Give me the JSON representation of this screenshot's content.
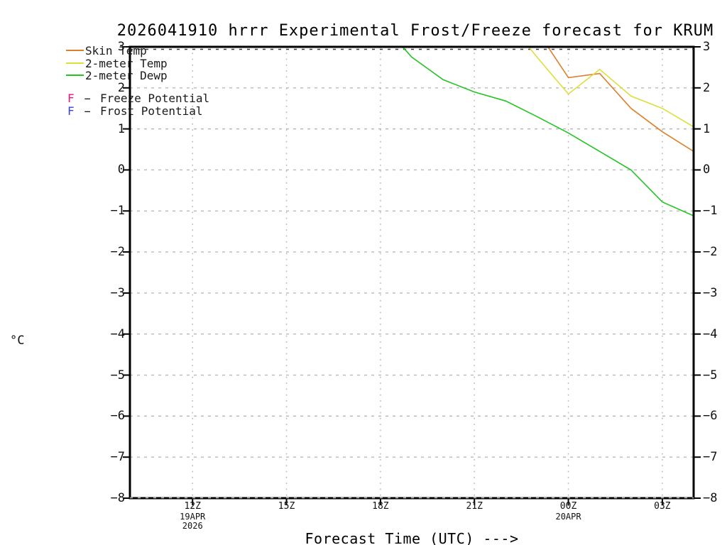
{
  "title": "2026041910 hrrr Experimental Frost/Freeze forecast for KRUM",
  "y_axis_unit": "°C",
  "legend": {
    "series": [
      {
        "label": "Skin Temp",
        "color": "#DD7F2B"
      },
      {
        "label": "2-meter Temp",
        "color": "#DEDE3C"
      },
      {
        "label": "2-meter Dewp",
        "color": "#24C424"
      }
    ],
    "flags": [
      {
        "letter": "F",
        "separator": "-",
        "label": "Freeze Potential",
        "color": "#F01274"
      },
      {
        "letter": "F",
        "separator": "-",
        "label": "Frost Potential",
        "color": "#3442DE"
      }
    ]
  },
  "chart_data": {
    "type": "line",
    "title": "2026041910 hrrr Experimental Frost/Freeze forecast for KRUM",
    "xlabel": "Forecast Time (UTC) --->",
    "ylabel": "°C",
    "x_range_hours": [
      10,
      28
    ],
    "ylim": [
      -8,
      3
    ],
    "y_ticks": [
      3,
      2,
      1,
      0,
      -1,
      -2,
      -3,
      -4,
      -5,
      -6,
      -7,
      -8
    ],
    "x_ticks": [
      {
        "hour": 12,
        "label": "12Z",
        "sub": "19APR",
        "sub2": "2026"
      },
      {
        "hour": 15,
        "label": "15Z"
      },
      {
        "hour": 18,
        "label": "18Z"
      },
      {
        "hour": 21,
        "label": "21Z"
      },
      {
        "hour": 24,
        "label": "00Z",
        "sub": "20APR"
      },
      {
        "hour": 27,
        "label": "03Z"
      }
    ],
    "grid": {
      "horizontal_style": "dashed",
      "vertical_style": "dotted",
      "color": "#b9b9b9"
    },
    "series": [
      {
        "name": "Skin Temp",
        "color": "#DD7F2B",
        "points": [
          [
            23,
            3.4
          ],
          [
            24,
            2.25
          ],
          [
            25,
            2.35
          ],
          [
            26,
            1.5
          ],
          [
            27,
            0.93
          ],
          [
            28,
            0.45
          ]
        ]
      },
      {
        "name": "2-meter Temp",
        "color": "#DEDE3C",
        "points": [
          [
            22,
            3.7
          ],
          [
            23,
            2.75
          ],
          [
            24,
            1.85
          ],
          [
            25,
            2.45
          ],
          [
            26,
            1.8
          ],
          [
            27,
            1.5
          ],
          [
            28,
            1.05
          ]
        ]
      },
      {
        "name": "2-meter Dewp",
        "color": "#24C424",
        "points": [
          [
            18,
            3.6
          ],
          [
            19,
            2.75
          ],
          [
            20,
            2.2
          ],
          [
            21,
            1.9
          ],
          [
            22,
            1.68
          ],
          [
            23,
            1.3
          ],
          [
            24,
            0.9
          ],
          [
            25,
            0.45
          ],
          [
            26,
            0.0
          ],
          [
            27,
            -0.78
          ],
          [
            28,
            -1.12
          ]
        ]
      }
    ],
    "clip_note": "values above 3 °C are clipped at the plot top; hours 24-28 = 00Z-04Z on 20APR",
    "freeze_potential_markers": [],
    "frost_potential_markers": []
  }
}
